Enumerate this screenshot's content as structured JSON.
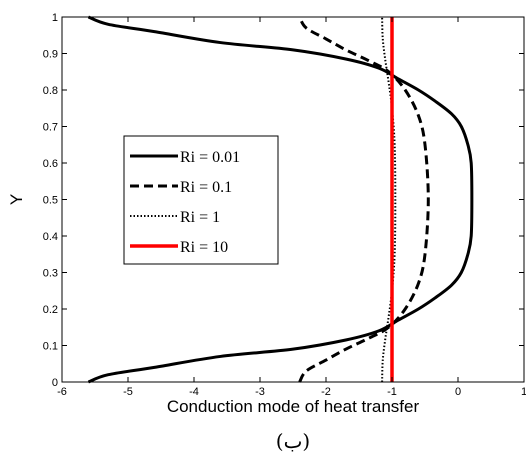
{
  "chart_data": {
    "type": "line",
    "xlabel": "Conduction mode of heat transfer",
    "ylabel": "Y",
    "caption": "(ب)",
    "xlim": [
      -6,
      1
    ],
    "ylim": [
      0,
      1
    ],
    "x_ticks": [
      -6,
      -5,
      -4,
      -3,
      -2,
      -1,
      0,
      1
    ],
    "y_ticks": [
      0,
      0.1,
      0.2,
      0.3,
      0.4,
      0.5,
      0.6,
      0.7,
      0.8,
      0.9,
      1
    ],
    "legend_position": "center-left",
    "grid": false,
    "series": [
      {
        "name": "Ri = 0.01",
        "color": "#000000",
        "style": "solid",
        "points": [
          [
            -5.6,
            0.0
          ],
          [
            -5.3,
            0.02
          ],
          [
            -4.6,
            0.04
          ],
          [
            -3.6,
            0.07
          ],
          [
            -2.5,
            0.09
          ],
          [
            -1.7,
            0.115
          ],
          [
            -1.2,
            0.14
          ],
          [
            -0.9,
            0.17
          ],
          [
            -0.6,
            0.2
          ],
          [
            -0.35,
            0.23
          ],
          [
            -0.1,
            0.265
          ],
          [
            0.05,
            0.3
          ],
          [
            0.15,
            0.35
          ],
          [
            0.2,
            0.4
          ],
          [
            0.21,
            0.5
          ],
          [
            0.2,
            0.6
          ],
          [
            0.15,
            0.65
          ],
          [
            0.05,
            0.7
          ],
          [
            -0.1,
            0.735
          ],
          [
            -0.35,
            0.77
          ],
          [
            -0.6,
            0.8
          ],
          [
            -0.9,
            0.83
          ],
          [
            -1.2,
            0.86
          ],
          [
            -1.7,
            0.885
          ],
          [
            -2.5,
            0.91
          ],
          [
            -3.6,
            0.93
          ],
          [
            -4.6,
            0.96
          ],
          [
            -5.3,
            0.98
          ],
          [
            -5.6,
            1.0
          ]
        ]
      },
      {
        "name": "Ri = 0.1",
        "color": "#000000",
        "style": "dashed",
        "points": [
          [
            -2.4,
            0.0
          ],
          [
            -2.3,
            0.03
          ],
          [
            -2.0,
            0.06
          ],
          [
            -1.7,
            0.09
          ],
          [
            -1.35,
            0.12
          ],
          [
            -1.05,
            0.15
          ],
          [
            -0.8,
            0.2
          ],
          [
            -0.6,
            0.27
          ],
          [
            -0.5,
            0.35
          ],
          [
            -0.45,
            0.5
          ],
          [
            -0.5,
            0.65
          ],
          [
            -0.6,
            0.73
          ],
          [
            -0.8,
            0.8
          ],
          [
            -1.05,
            0.85
          ],
          [
            -1.35,
            0.88
          ],
          [
            -1.7,
            0.91
          ],
          [
            -2.0,
            0.94
          ],
          [
            -2.3,
            0.97
          ],
          [
            -2.4,
            1.0
          ]
        ]
      },
      {
        "name": "Ri = 1",
        "color": "#000000",
        "style": "dotted",
        "points": [
          [
            -1.15,
            0.0
          ],
          [
            -1.14,
            0.06
          ],
          [
            -1.1,
            0.12
          ],
          [
            -1.05,
            0.18
          ],
          [
            -1.0,
            0.25
          ],
          [
            -0.96,
            0.35
          ],
          [
            -0.95,
            0.5
          ],
          [
            -0.96,
            0.65
          ],
          [
            -1.0,
            0.75
          ],
          [
            -1.05,
            0.82
          ],
          [
            -1.1,
            0.88
          ],
          [
            -1.14,
            0.94
          ],
          [
            -1.15,
            1.0
          ]
        ]
      },
      {
        "name": "Ri = 10",
        "color": "#ff0000",
        "style": "solid",
        "points": [
          [
            -1.0,
            0.0
          ],
          [
            -1.0,
            1.0
          ]
        ]
      }
    ]
  }
}
